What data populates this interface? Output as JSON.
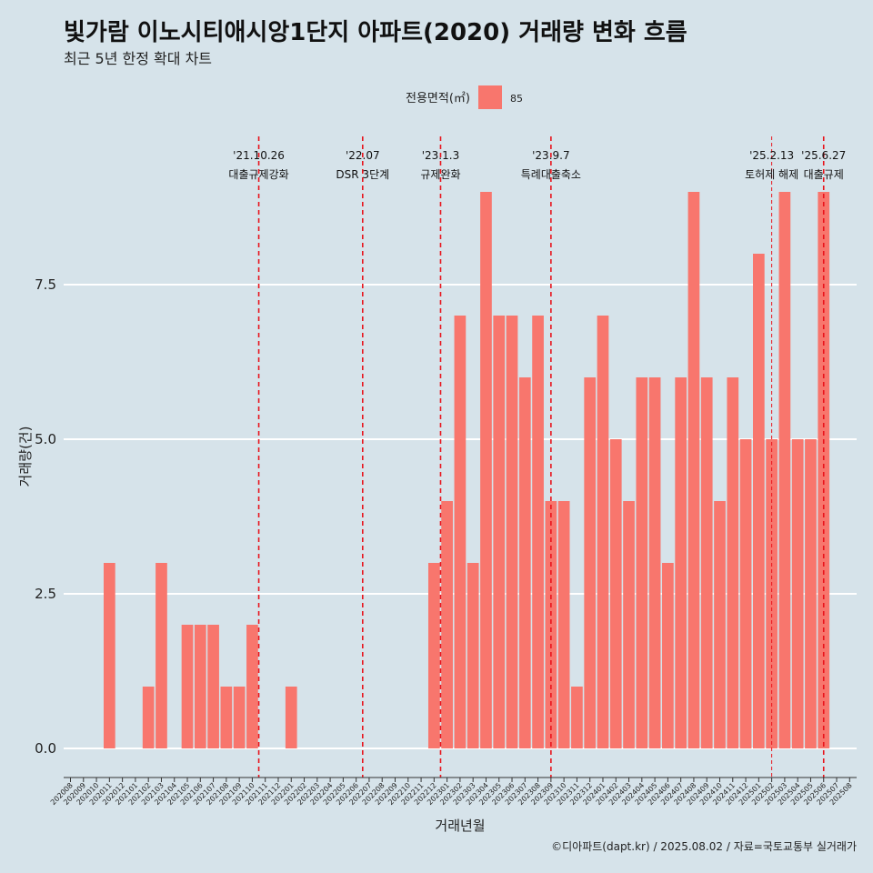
{
  "chart_data": {
    "type": "bar",
    "title": "빛가람 이노시티애시앙1단지 아파트(2020) 거래량 변화 흐름",
    "subtitle": "최근 5년 한정 확대 차트",
    "xlabel": "거래년월",
    "ylabel": "거래량(건)",
    "ylim": [
      0,
      9
    ],
    "yticks": [
      0,
      2.5,
      5,
      7.5
    ],
    "ytick_labels": [
      "0.0",
      "2.5",
      "5.0",
      "7.5"
    ],
    "grid": "horizontal",
    "legend": {
      "title": "전용면적(㎡)",
      "position": "top",
      "entries": [
        {
          "label": "85",
          "color": "#F8766D"
        }
      ]
    },
    "bar_color": "#F8766D",
    "categories": [
      "202008",
      "202009",
      "202010",
      "202011",
      "202012",
      "202101",
      "202102",
      "202103",
      "202104",
      "202105",
      "202106",
      "202107",
      "202108",
      "202109",
      "202110",
      "202111",
      "202112",
      "202201",
      "202202",
      "202203",
      "202204",
      "202205",
      "202206",
      "202207",
      "202208",
      "202209",
      "202210",
      "202211",
      "202212",
      "202301",
      "202302",
      "202303",
      "202304",
      "202305",
      "202306",
      "202307",
      "202308",
      "202309",
      "202310",
      "202311",
      "202312",
      "202401",
      "202402",
      "202403",
      "202404",
      "202405",
      "202406",
      "202407",
      "202408",
      "202409",
      "202410",
      "202411",
      "202412",
      "202501",
      "202502",
      "202503",
      "202504",
      "202505",
      "202506",
      "202507",
      "202508"
    ],
    "values": [
      0,
      0,
      0,
      3,
      0,
      0,
      1,
      3,
      0,
      2,
      2,
      2,
      1,
      1,
      2,
      0,
      0,
      1,
      0,
      0,
      0,
      0,
      0,
      0,
      0,
      0,
      0,
      0,
      3,
      4,
      7,
      3,
      9,
      7,
      7,
      6,
      7,
      4,
      4,
      1,
      6,
      7,
      5,
      4,
      6,
      6,
      3,
      6,
      9,
      6,
      4,
      6,
      5,
      8,
      5,
      9,
      5,
      5,
      9,
      0,
      0
    ],
    "events": [
      {
        "date": "'21.10.26",
        "label": "대출규제강화",
        "at": "202110",
        "offset": 0.5,
        "line": "dashed"
      },
      {
        "date": "'22.07",
        "label": "DSR 3단계",
        "at": "202207",
        "offset": -0.5,
        "line": "dashed"
      },
      {
        "date": "'23.1.3",
        "label": "규제완화",
        "at": "202301",
        "offset": -0.5,
        "line": "dashed"
      },
      {
        "date": "'23.9.7",
        "label": "특례대출축소",
        "at": "202309",
        "offset": 0,
        "line": "dashed"
      },
      {
        "date": "'25.2.13",
        "label": "토허제 해제",
        "at": "202502",
        "offset": 0,
        "line": "dashed-thin"
      },
      {
        "date": "'25.6.27",
        "label": "대출규제",
        "at": "202506",
        "offset": 0,
        "line": "dashed"
      }
    ],
    "event_color": "#E8141C"
  },
  "caption": "©디아파트(dapt.kr) / 2025.08.02 / 자료=국토교통부 실거래가"
}
